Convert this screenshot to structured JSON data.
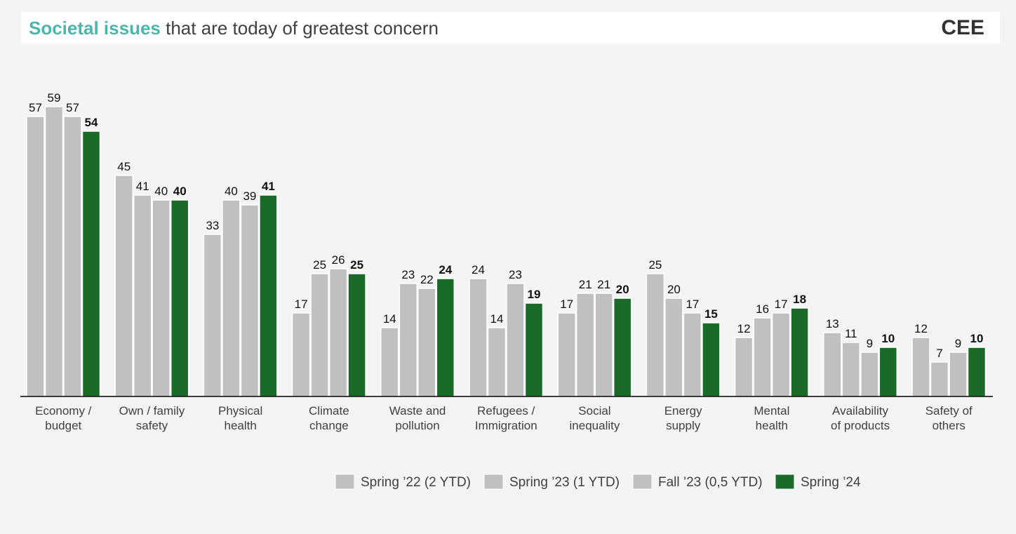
{
  "header": {
    "title_highlight": "Societal issues",
    "title_rest": " that are today of greatest concern",
    "region": "CEE"
  },
  "colors": {
    "accent": "#4db6ac",
    "bar_grey": "#c0c0c0",
    "bar_green": "#1a6b28"
  },
  "chart_data": {
    "type": "bar",
    "categories": [
      [
        "Economy /",
        "budget"
      ],
      [
        "Own / family",
        "safety"
      ],
      [
        "Physical",
        "health"
      ],
      [
        "Climate",
        "change"
      ],
      [
        "Waste and",
        "pollution"
      ],
      [
        "Refugees /",
        "Immigration"
      ],
      [
        "Social",
        "inequality"
      ],
      [
        "Energy",
        "supply"
      ],
      [
        "Mental",
        "health"
      ],
      [
        "Availability",
        "of products"
      ],
      [
        "Safety of",
        "others"
      ]
    ],
    "series": [
      {
        "name": "Spring ’22 (2 YTD)",
        "color": "#c0c0c0",
        "values": [
          57,
          45,
          33,
          17,
          14,
          24,
          17,
          25,
          12,
          13,
          12
        ]
      },
      {
        "name": "Spring ’23 (1 YTD)",
        "color": "#c0c0c0",
        "values": [
          59,
          41,
          40,
          25,
          23,
          14,
          21,
          20,
          16,
          11,
          7
        ]
      },
      {
        "name": "Fall ’23 (0,5 YTD)",
        "color": "#c0c0c0",
        "values": [
          57,
          40,
          39,
          26,
          22,
          23,
          21,
          17,
          17,
          9,
          9
        ]
      },
      {
        "name": "Spring ’24",
        "color": "#1a6b28",
        "values": [
          54,
          40,
          41,
          25,
          24,
          19,
          20,
          15,
          18,
          10,
          10
        ]
      }
    ],
    "ylim": [
      0,
      59
    ],
    "data_labels": true,
    "legend_position": "bottom"
  }
}
